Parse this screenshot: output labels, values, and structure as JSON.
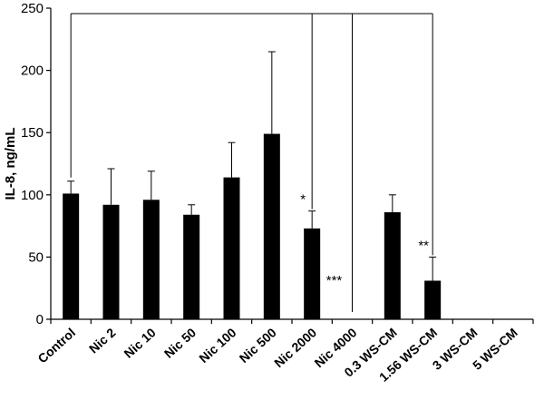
{
  "chart_data": {
    "type": "bar",
    "title": "",
    "xlabel": "",
    "ylabel": "IL-8, ng/mL",
    "ylim": [
      0,
      250
    ],
    "yticks": [
      0,
      50,
      100,
      150,
      200,
      250
    ],
    "grid": false,
    "legend": "none",
    "bar_color": "#000000",
    "categories": [
      "Control",
      "Nic 2",
      "Nic 10",
      "Nic 50",
      "Nic 100",
      "Nic 500",
      "Nic 2000",
      "Nic 4000",
      "0.3 WS-CM",
      "1.56 WS-CM",
      "3 WS-CM",
      "5 WS-CM"
    ],
    "values": [
      101,
      92,
      96,
      84,
      114,
      149,
      73,
      0,
      86,
      31,
      0,
      0
    ],
    "error_plus": [
      10,
      29,
      23,
      8,
      28,
      66,
      14,
      0,
      14,
      19,
      0,
      0
    ],
    "annotations": [
      {
        "category": "Nic 2000",
        "text": "*"
      },
      {
        "category": "Nic 4000",
        "text": "***"
      },
      {
        "category": "1.56 WS-CM",
        "text": "**"
      }
    ],
    "comparison_lines": {
      "from": "Control",
      "to": [
        "Nic 2000",
        "Nic 4000",
        "1.56 WS-CM"
      ]
    }
  }
}
